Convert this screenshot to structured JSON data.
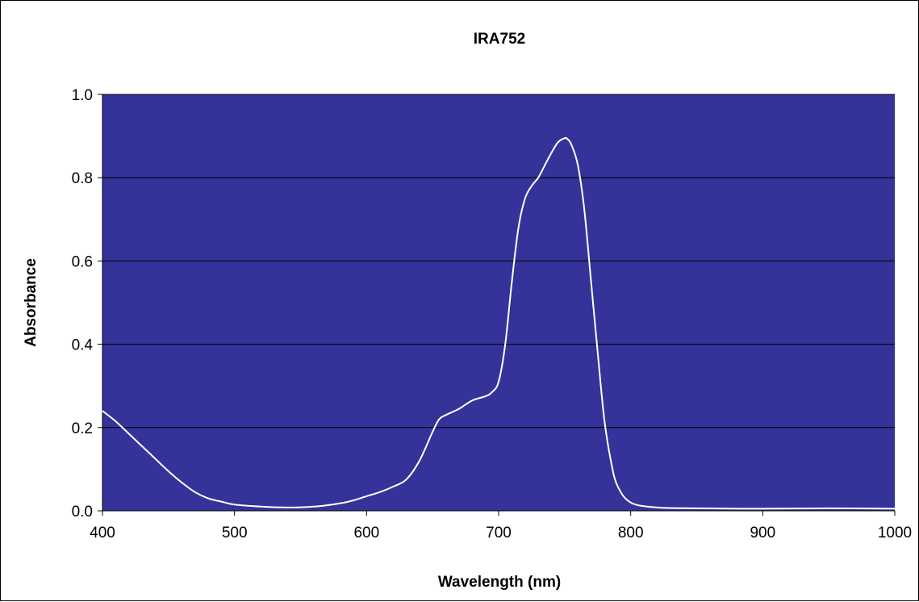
{
  "chart_data": {
    "type": "line",
    "title": "IRA752",
    "xlabel": "Wavelength (nm)",
    "ylabel": "Absorbance",
    "xlim": [
      400,
      1000
    ],
    "ylim": [
      0,
      1.0
    ],
    "x_ticks": [
      "400",
      "500",
      "600",
      "700",
      "800",
      "900",
      "1000"
    ],
    "y_ticks": [
      "0.0",
      "0.2",
      "0.4",
      "0.6",
      "0.8",
      "1.0"
    ],
    "grid": "horizontal",
    "legend": "none",
    "colors": {
      "plot_background": "#333399",
      "line": "#ffffff",
      "grid": "#000000"
    },
    "series": [
      {
        "x": [
          400,
          410,
          420,
          430,
          440,
          450,
          460,
          470,
          480,
          490,
          500,
          520,
          540,
          560,
          580,
          590,
          600,
          610,
          620,
          630,
          640,
          650,
          655,
          660,
          670,
          680,
          690,
          695,
          700,
          705,
          710,
          715,
          720,
          725,
          730,
          735,
          740,
          745,
          750,
          752,
          755,
          760,
          765,
          770,
          775,
          780,
          785,
          790,
          800,
          820,
          850,
          900,
          950,
          1000
        ],
        "y": [
          0.24,
          0.215,
          0.185,
          0.155,
          0.125,
          0.095,
          0.068,
          0.045,
          0.03,
          0.022,
          0.015,
          0.01,
          0.008,
          0.01,
          0.018,
          0.025,
          0.035,
          0.045,
          0.058,
          0.075,
          0.12,
          0.19,
          0.22,
          0.23,
          0.245,
          0.265,
          0.275,
          0.285,
          0.31,
          0.4,
          0.55,
          0.68,
          0.75,
          0.78,
          0.8,
          0.83,
          0.86,
          0.885,
          0.895,
          0.893,
          0.88,
          0.83,
          0.72,
          0.55,
          0.38,
          0.22,
          0.12,
          0.06,
          0.02,
          0.008,
          0.006,
          0.005,
          0.006,
          0.005
        ]
      }
    ]
  }
}
